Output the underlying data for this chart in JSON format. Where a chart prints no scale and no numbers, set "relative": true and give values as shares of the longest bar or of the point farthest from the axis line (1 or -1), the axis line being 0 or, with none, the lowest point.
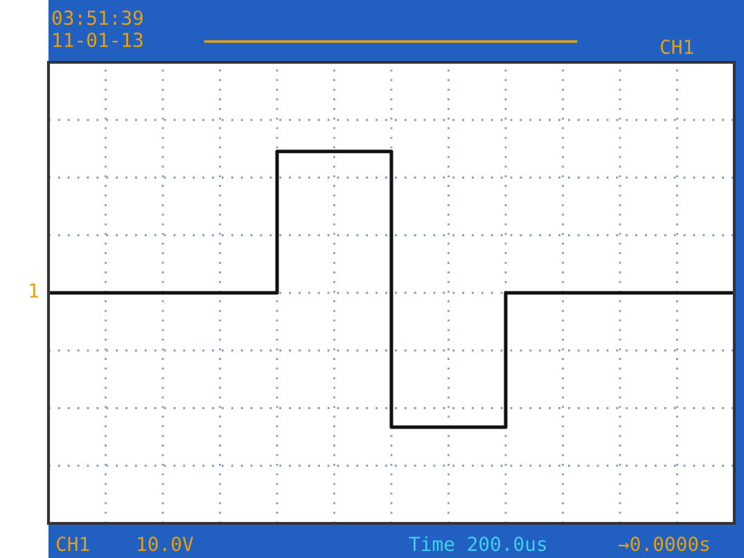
{
  "chart_data": {
    "type": "step",
    "relative": true,
    "grid": true,
    "categories": [
      null,
      null,
      null,
      null,
      null,
      null,
      null,
      null,
      null,
      null,
      null,
      null,
      null,
      null,
      null,
      null,
      null,
      null,
      null,
      null,
      null,
      null,
      null,
      null,
      null,
      null,
      null,
      null,
      null,
      null,
      null,
      null,
      null,
      null,
      null,
      null,
      null,
      null,
      null,
      null,
      null,
      null,
      null,
      null,
      null,
      null,
      null,
      null,
      null
    ],
    "series": [
      {
        "color": "#111111",
        "values": [
          0,
          0,
          0,
          0,
          0,
          0,
          0,
          0,
          0,
          0,
          0,
          0,
          0,
          0,
          0,
          0,
          1,
          1,
          1,
          1,
          1,
          1,
          1,
          1,
          -0.95,
          -0.95,
          -0.95,
          -0.95,
          -0.95,
          -0.95,
          -0.95,
          -0.95,
          0,
          0,
          0,
          0,
          0,
          0,
          0,
          0,
          0,
          0,
          0,
          0,
          0,
          0,
          0,
          0,
          0
        ]
      }
    ],
    "annotations": [
      "03:51:39",
      "11-01-13",
      "CH1",
      "1",
      "CH1",
      "10.0V",
      "Time 200.0us",
      "→0.0000s"
    ]
  }
}
